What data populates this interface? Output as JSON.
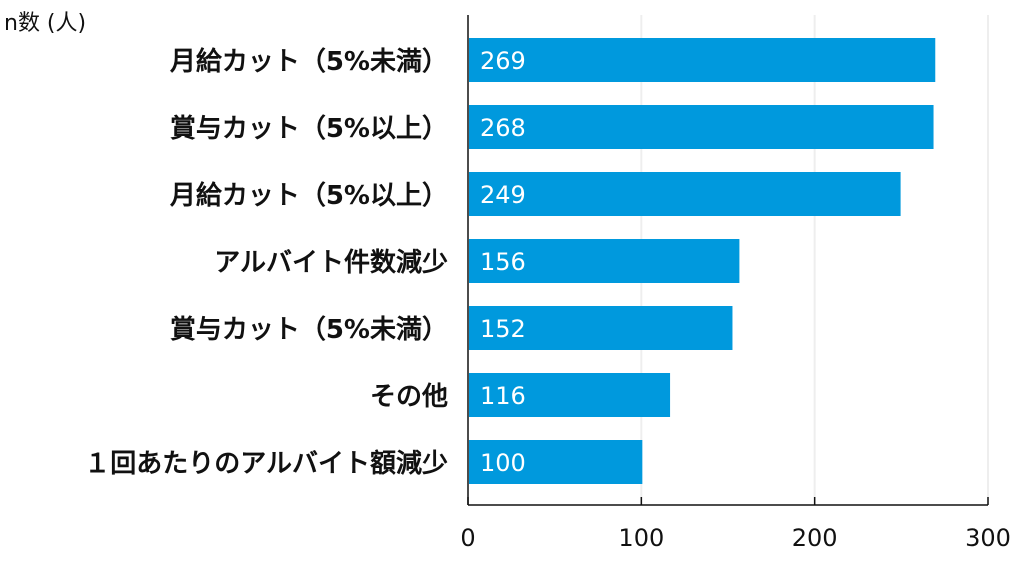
{
  "chart_data": {
    "type": "bar",
    "orientation": "horizontal",
    "title": "",
    "ylabel": "n数 (人)",
    "xlabel": "",
    "categories": [
      "月給カット（5%未満）",
      "賞与カット（5%以上）",
      "月給カット（5%以上）",
      "アルバイト件数減少",
      "賞与カット（5%未満）",
      "その他",
      "１回あたりのアルバイト額減少"
    ],
    "values": [
      269,
      268,
      249,
      156,
      152,
      116,
      100
    ],
    "data_labels": [
      "269",
      "268",
      "249",
      "156",
      "152",
      "116",
      "100"
    ],
    "xlim": [
      0,
      300
    ],
    "xticks": [
      "0",
      "100",
      "200",
      "300"
    ],
    "grid": true,
    "legend": "none",
    "bar_color": "#0099DD",
    "label_color": "#FFFFFF"
  }
}
